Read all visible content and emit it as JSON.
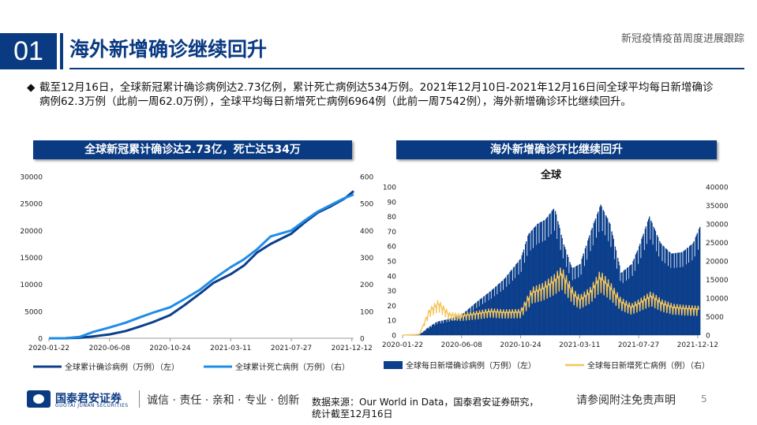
{
  "header": {
    "number": "01",
    "title": "海外新增确诊继续回升",
    "right_title": "新冠疫情疫苗周度进展跟踪"
  },
  "bullet": {
    "mark": "◆",
    "text": "截至12月16日，全球新冠累计确诊病例达2.73亿例，累计死亡病例达534万例。2021年12月10日-2021年12月16日间全球平均每日新增确诊病例62.3万例（此前一周62.0万例），全球平均每日新增死亡病例6964例（此前一周7542例），海外新增确诊环比继续回升。"
  },
  "colors": {
    "brand": "#0a3a82",
    "dark_blue": "#0c3f8c",
    "light_blue": "#1f8ce8",
    "yellow": "#f4c55c"
  },
  "chart_data": [
    {
      "type": "line",
      "banner": "全球新冠累计确诊达2.73亿，死亡达534万",
      "title": "",
      "x_ticks": [
        "2020-01-22",
        "2020-06-08",
        "2020-10-24",
        "2021-03-11",
        "2021-07-27",
        "2021-12-12"
      ],
      "y_left": {
        "min": 0,
        "max": 30000,
        "ticks": [
          0,
          5000,
          10000,
          15000,
          20000,
          25000,
          30000
        ]
      },
      "y_right": {
        "min": 0,
        "max": 600,
        "ticks": [
          0,
          100,
          200,
          300,
          400,
          500,
          600
        ]
      },
      "series": [
        {
          "name": "全球累计确诊病例（万例）（左）",
          "axis": "left",
          "x": [
            "2020-01-22",
            "2020-03-01",
            "2020-04-01",
            "2020-05-01",
            "2020-06-08",
            "2020-07-15",
            "2020-08-15",
            "2020-09-15",
            "2020-10-24",
            "2020-11-25",
            "2020-12-31",
            "2021-01-31",
            "2021-03-11",
            "2021-04-10",
            "2021-05-10",
            "2021-06-10",
            "2021-07-27",
            "2021-08-25",
            "2021-09-25",
            "2021-10-25",
            "2021-11-25",
            "2021-12-16"
          ],
          "values": [
            0,
            10,
            90,
            330,
            720,
            1350,
            2150,
            3000,
            4300,
            6100,
            8300,
            10300,
            11900,
            13500,
            15900,
            17500,
            19400,
            21400,
            23300,
            24500,
            25900,
            27300
          ]
        },
        {
          "name": "全球累计死亡病例（万例）（右）",
          "axis": "right",
          "x": [
            "2020-01-22",
            "2020-03-01",
            "2020-04-01",
            "2020-05-01",
            "2020-06-08",
            "2020-07-15",
            "2020-08-15",
            "2020-09-15",
            "2020-10-24",
            "2020-11-25",
            "2020-12-31",
            "2021-01-31",
            "2021-03-11",
            "2021-04-10",
            "2021-05-10",
            "2021-06-10",
            "2021-07-27",
            "2021-08-25",
            "2021-09-25",
            "2021-10-25",
            "2021-11-25",
            "2021-12-16"
          ],
          "values": [
            0,
            0.3,
            5,
            23,
            40,
            58,
            77,
            95,
            115,
            145,
            180,
            220,
            264,
            293,
            330,
            378,
            400,
            435,
            470,
            495,
            520,
            534
          ]
        }
      ]
    },
    {
      "type": "bar",
      "banner": "海外新增确诊环比继续回升",
      "title": "全球",
      "x_ticks": [
        "2020-01-22",
        "2020-06-08",
        "2020-10-24",
        "2021-03-11",
        "2021-07-27",
        "2021-12-12"
      ],
      "y_left": {
        "min": 0,
        "max": 100,
        "ticks": [
          0,
          10,
          20,
          30,
          40,
          50,
          60,
          70,
          80,
          90,
          100
        ]
      },
      "y_right": {
        "min": 0,
        "max": 40000,
        "ticks": [
          0,
          5000,
          10000,
          15000,
          20000,
          25000,
          30000,
          35000,
          40000
        ]
      },
      "series": [
        {
          "name": "全球每日新增确诊病例（万例）（左）",
          "axis": "left",
          "kind": "bar",
          "x": [
            "2020-01-22",
            "2020-03-01",
            "2020-03-20",
            "2020-04-10",
            "2020-05-10",
            "2020-06-08",
            "2020-07-15",
            "2020-08-15",
            "2020-09-15",
            "2020-10-24",
            "2020-11-10",
            "2020-12-01",
            "2020-12-20",
            "2021-01-10",
            "2021-01-31",
            "2021-02-20",
            "2021-03-11",
            "2021-04-05",
            "2021-04-28",
            "2021-05-20",
            "2021-06-15",
            "2021-07-10",
            "2021-07-27",
            "2021-08-20",
            "2021-09-15",
            "2021-10-10",
            "2021-11-05",
            "2021-11-30",
            "2021-12-16"
          ],
          "values": [
            0,
            0.5,
            5,
            9,
            11,
            14,
            23,
            30,
            38,
            52,
            68,
            75,
            78,
            86,
            62,
            45,
            48,
            70,
            88,
            75,
            42,
            48,
            60,
            80,
            62,
            55,
            56,
            62,
            73
          ]
        },
        {
          "name": "全球每日新增死亡病例（例）（右）",
          "axis": "right",
          "kind": "line",
          "x": [
            "2020-01-22",
            "2020-03-01",
            "2020-03-25",
            "2020-04-15",
            "2020-05-10",
            "2020-06-08",
            "2020-07-15",
            "2020-08-15",
            "2020-09-15",
            "2020-10-24",
            "2020-11-20",
            "2020-12-15",
            "2021-01-10",
            "2021-01-28",
            "2021-02-25",
            "2021-03-11",
            "2021-04-05",
            "2021-04-28",
            "2021-05-20",
            "2021-06-15",
            "2021-07-10",
            "2021-07-27",
            "2021-08-25",
            "2021-09-20",
            "2021-10-15",
            "2021-11-10",
            "2021-12-16"
          ],
          "values": [
            0,
            200,
            6500,
            8500,
            5500,
            5200,
            5800,
            6400,
            6100,
            6200,
            11500,
            12500,
            14500,
            16500,
            11000,
            9500,
            11500,
            15500,
            13000,
            9000,
            7500,
            8500,
            10500,
            8500,
            7500,
            7200,
            7000
          ]
        }
      ]
    }
  ],
  "legend_left": [
    "全球累计确诊病例（万例）（左）",
    "全球累计死亡病例（万例）（右）"
  ],
  "legend_right": [
    "全球每日新增确诊病例（万例）（左）",
    "全球每日新增死亡病例（例）（右）"
  ],
  "footer": {
    "logo_name": "国泰君安证券",
    "logo_sub": "GUOTAI JUNAN SECURITIES",
    "motto": "诚信 · 责任 · 亲和 · 专业 · 创新",
    "source_line1": "数据来源：Our World in Data，国泰君安证券研究，",
    "source_line2": "统计截至12月16日",
    "disclaimer": "请参阅附注免责声明",
    "page": "5"
  }
}
